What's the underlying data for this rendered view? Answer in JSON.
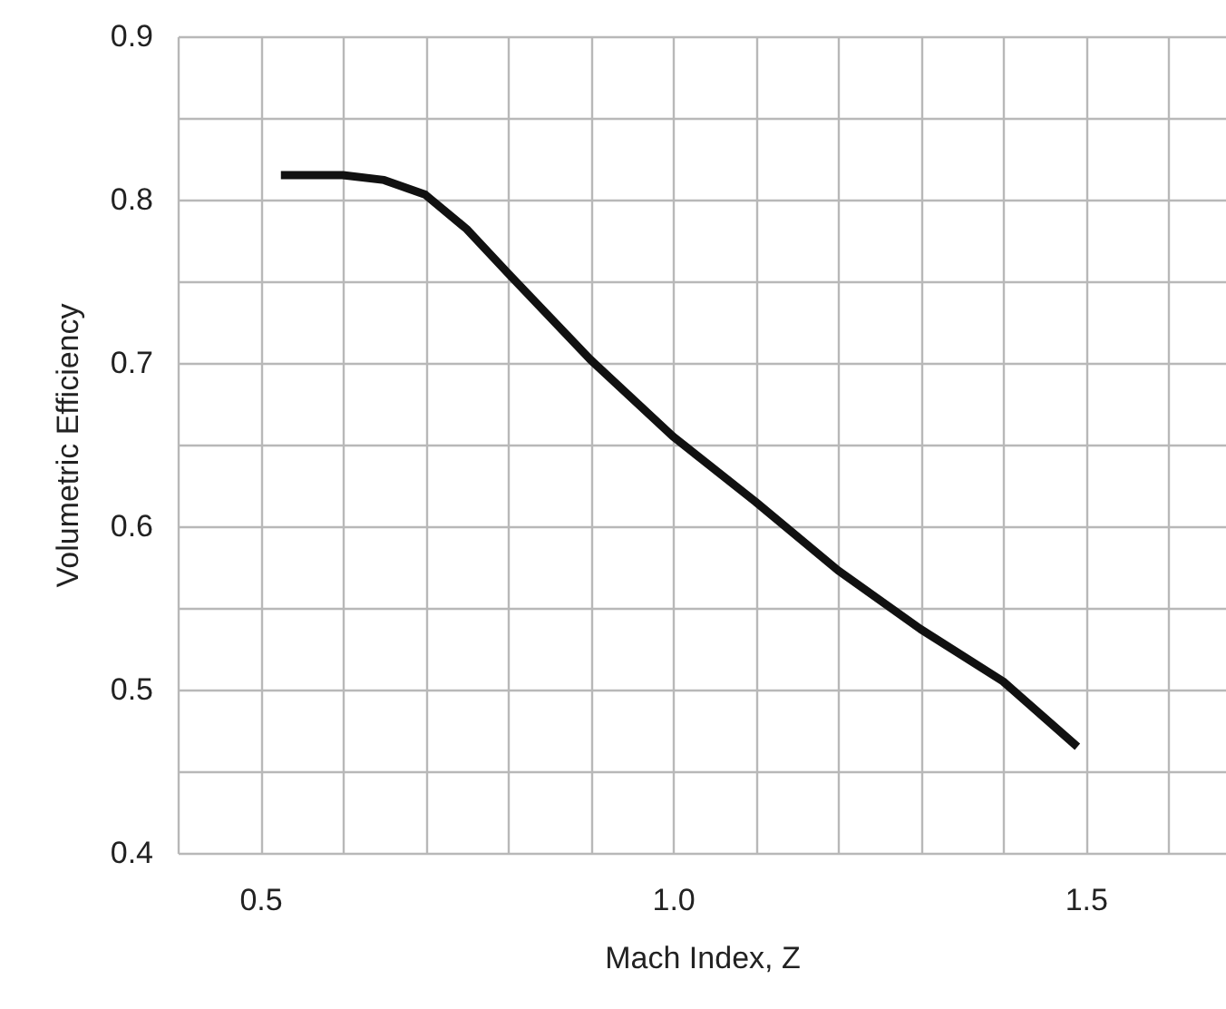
{
  "chart_data": {
    "type": "line",
    "xlabel": "Mach Index, Z",
    "ylabel": "Volumetric Efficiency",
    "x": [
      0.525,
      0.6,
      0.65,
      0.7,
      0.75,
      0.8,
      0.9,
      1.0,
      1.1,
      1.2,
      1.3,
      1.4,
      1.49
    ],
    "series": [
      {
        "color": "#111111",
        "values": [
          0.815,
          0.815,
          0.812,
          0.803,
          0.782,
          0.755,
          0.702,
          0.655,
          0.615,
          0.573,
          0.537,
          0.505,
          0.465
        ]
      }
    ],
    "xlim": [
      0.4,
      1.67
    ],
    "xticks": [
      {
        "value": 0.4,
        "label": null
      },
      {
        "value": 0.5,
        "label": "0.5"
      },
      {
        "value": 0.6,
        "label": null
      },
      {
        "value": 0.7,
        "label": null
      },
      {
        "value": 0.8,
        "label": null
      },
      {
        "value": 0.9,
        "label": null
      },
      {
        "value": 1.0,
        "label": "1.0"
      },
      {
        "value": 1.1,
        "label": null
      },
      {
        "value": 1.2,
        "label": null
      },
      {
        "value": 1.3,
        "label": null
      },
      {
        "value": 1.4,
        "label": null
      },
      {
        "value": 1.5,
        "label": "1.5"
      },
      {
        "value": 1.6,
        "label": null
      }
    ],
    "ylim": [
      0.4,
      0.9
    ],
    "yticks": [
      {
        "value": 0.4,
        "label": "0.4"
      },
      {
        "value": 0.45,
        "label": null
      },
      {
        "value": 0.5,
        "label": "0.5"
      },
      {
        "value": 0.55,
        "label": null
      },
      {
        "value": 0.6,
        "label": "0.6"
      },
      {
        "value": 0.65,
        "label": null
      },
      {
        "value": 0.7,
        "label": "0.7"
      },
      {
        "value": 0.75,
        "label": null
      },
      {
        "value": 0.8,
        "label": "0.8"
      },
      {
        "value": 0.85,
        "label": null
      },
      {
        "value": 0.9,
        "label": "0.9"
      }
    ],
    "grid": true,
    "legend": false,
    "marker": "none",
    "line_style": "solid"
  }
}
